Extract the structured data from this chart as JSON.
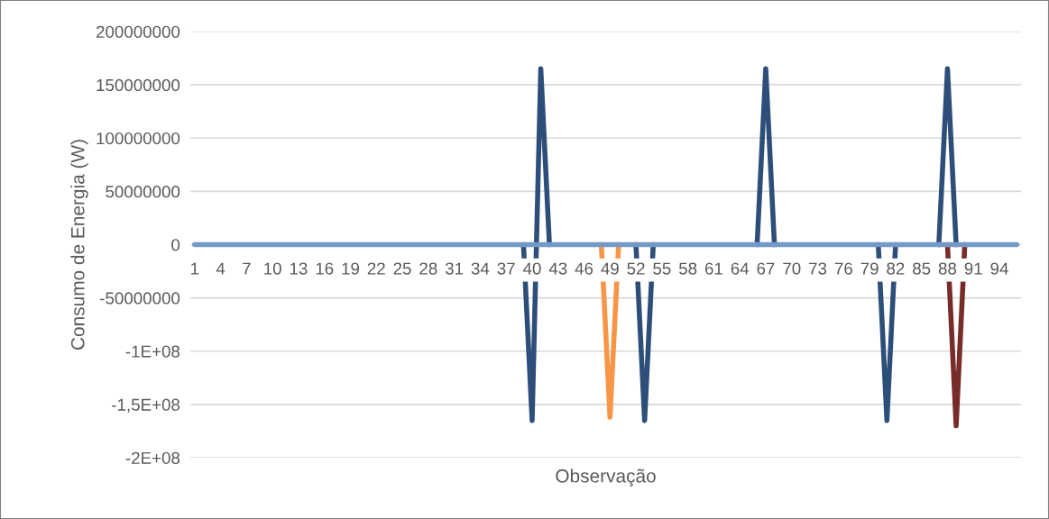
{
  "chart_data": {
    "type": "line",
    "xlabel": "Observação",
    "ylabel": "Consumo de Energia (W)",
    "categories": [
      "1",
      null,
      null,
      "4",
      null,
      null,
      "7",
      null,
      null,
      "10",
      null,
      null,
      "13",
      null,
      null,
      "16",
      null,
      null,
      "19",
      null,
      null,
      "22",
      null,
      null,
      "25",
      null,
      null,
      "28",
      null,
      null,
      "31",
      null,
      null,
      "34",
      null,
      null,
      "37",
      null,
      null,
      "40",
      null,
      null,
      "43",
      null,
      null,
      "46",
      null,
      null,
      "49",
      null,
      null,
      "52",
      null,
      null,
      "55",
      null,
      null,
      "58",
      null,
      null,
      "61",
      null,
      null,
      "64",
      null,
      null,
      "67",
      null,
      null,
      "70",
      null,
      null,
      "73",
      null,
      null,
      "76",
      null,
      null,
      "79",
      null,
      null,
      "82",
      null,
      null,
      "85",
      null,
      null,
      "88",
      null,
      null,
      "91",
      null,
      null,
      "94",
      null,
      null
    ],
    "series": [
      {
        "color": "#2e4e7a",
        "values": [
          null,
          null,
          null,
          null,
          null,
          null,
          null,
          null,
          null,
          null,
          null,
          null,
          null,
          null,
          null,
          null,
          null,
          null,
          null,
          null,
          null,
          null,
          null,
          null,
          null,
          null,
          null,
          null,
          null,
          null,
          null,
          null,
          null,
          null,
          null,
          null,
          null,
          null,
          0,
          -165000000,
          165000000,
          0,
          null,
          null,
          null,
          null,
          null,
          null,
          null,
          null,
          null,
          0,
          -165000000,
          0,
          null,
          null,
          null,
          null,
          null,
          null,
          null,
          null,
          null,
          null,
          null,
          0,
          165000000,
          0,
          null,
          null,
          null,
          null,
          null,
          null,
          null,
          null,
          null,
          null,
          null,
          0,
          -165000000,
          0,
          null,
          null,
          null,
          null,
          0,
          165000000,
          0,
          null,
          null,
          null,
          null,
          null,
          null,
          null
        ]
      },
      {
        "color": "#f79646",
        "values": [
          null,
          null,
          null,
          null,
          null,
          null,
          null,
          null,
          null,
          null,
          null,
          null,
          null,
          null,
          null,
          null,
          null,
          null,
          null,
          null,
          null,
          null,
          null,
          null,
          null,
          null,
          null,
          null,
          null,
          null,
          null,
          null,
          null,
          null,
          null,
          null,
          null,
          null,
          null,
          null,
          null,
          null,
          null,
          null,
          null,
          null,
          null,
          0,
          -162000000,
          0,
          null,
          null,
          null,
          null,
          null,
          null,
          null,
          null,
          null,
          null,
          null,
          null,
          null,
          null,
          null,
          null,
          null,
          null,
          null,
          null,
          null,
          null,
          null,
          null,
          null,
          null,
          null,
          null,
          null,
          null,
          null,
          null,
          null,
          null,
          null,
          null,
          null,
          null,
          null,
          null,
          null,
          null,
          null,
          null,
          null,
          null
        ]
      },
      {
        "color": "#772c2a",
        "values": [
          null,
          null,
          null,
          null,
          null,
          null,
          null,
          null,
          null,
          null,
          null,
          null,
          null,
          null,
          null,
          null,
          null,
          null,
          null,
          null,
          null,
          null,
          null,
          null,
          null,
          null,
          null,
          null,
          null,
          null,
          null,
          null,
          null,
          null,
          null,
          null,
          null,
          null,
          null,
          null,
          null,
          null,
          null,
          null,
          null,
          null,
          null,
          null,
          null,
          null,
          null,
          null,
          null,
          null,
          null,
          null,
          null,
          null,
          null,
          null,
          null,
          null,
          null,
          null,
          null,
          null,
          null,
          null,
          null,
          null,
          null,
          null,
          null,
          null,
          null,
          null,
          null,
          null,
          null,
          null,
          null,
          null,
          null,
          null,
          null,
          null,
          null,
          0,
          -170000000,
          0,
          null,
          null,
          null,
          null,
          null,
          null
        ]
      },
      {
        "color": "#7399c6",
        "values": [
          0,
          0,
          0,
          0,
          0,
          0,
          0,
          0,
          0,
          0,
          0,
          0,
          0,
          0,
          0,
          0,
          0,
          0,
          0,
          0,
          0,
          0,
          0,
          0,
          0,
          0,
          0,
          0,
          0,
          0,
          0,
          0,
          0,
          0,
          0,
          0,
          0,
          0,
          0,
          0,
          0,
          0,
          0,
          0,
          0,
          0,
          0,
          0,
          0,
          0,
          0,
          0,
          0,
          0,
          0,
          0,
          0,
          0,
          0,
          0,
          0,
          0,
          0,
          0,
          0,
          0,
          0,
          0,
          0,
          0,
          0,
          0,
          0,
          0,
          0,
          0,
          0,
          0,
          0,
          0,
          0,
          0,
          0,
          0,
          0,
          0,
          0,
          0,
          0,
          0,
          0,
          0,
          0,
          0,
          0,
          0
        ]
      }
    ],
    "ylim": [
      -200000000,
      200000000
    ],
    "yticks": [
      200000000,
      150000000,
      100000000,
      50000000,
      0,
      -50000000,
      {
        "value": -100000000,
        "label": "-1E+08"
      },
      {
        "value": -150000000,
        "label": "-1,5E+08"
      },
      {
        "value": -200000000,
        "label": "-2E+08"
      }
    ],
    "grid": "y",
    "legend": false,
    "marker": "none",
    "line_style": "solid"
  }
}
